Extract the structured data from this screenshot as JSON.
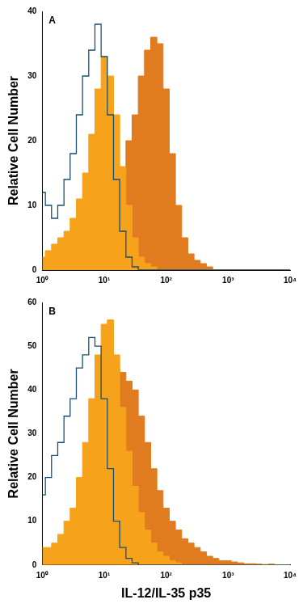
{
  "chart_data": [
    {
      "type": "line",
      "title": "A",
      "y_label": "Relative Cell Number",
      "x": [
        1,
        1.26,
        1.58,
        2,
        2.51,
        3.16,
        3.98,
        5.01,
        6.31,
        7.94,
        10,
        12.6,
        15.8,
        20,
        25.1,
        31.6,
        39.8,
        50.1,
        63.1,
        79.4,
        100,
        126,
        158,
        200,
        251,
        316,
        398,
        501,
        631,
        794,
        1000,
        1260,
        1580,
        2000,
        2510,
        3160,
        3980,
        5010,
        6310,
        7940,
        10000
      ],
      "series": [
        {
          "type": "line",
          "color": "#1b4f72",
          "values": [
            12,
            10,
            8,
            10,
            14,
            18,
            24,
            30,
            34,
            38,
            33,
            24,
            14,
            6,
            2,
            0.5,
            0,
            0,
            0,
            0,
            0,
            0,
            0,
            0,
            0,
            0,
            0,
            0,
            0,
            0,
            0,
            0,
            0,
            0,
            0,
            0,
            0,
            0,
            0,
            0,
            0
          ]
        },
        {
          "type": "area",
          "color": "#f7a21b",
          "values": [
            2,
            3,
            4,
            5,
            6,
            8,
            11,
            15,
            21,
            28,
            33,
            30,
            24,
            16,
            10,
            5,
            2,
            1,
            0.5,
            0,
            0,
            0,
            0,
            0,
            0,
            0,
            0,
            0,
            0,
            0,
            0,
            0,
            0,
            0,
            0,
            0,
            0,
            0,
            0,
            0,
            0
          ]
        },
        {
          "type": "area",
          "color": "#e07b1f",
          "values": [
            0,
            0,
            0,
            0,
            0,
            0,
            0,
            0,
            1,
            2,
            4,
            6,
            10,
            15,
            20,
            24,
            30,
            34,
            36,
            35,
            28,
            18,
            10,
            5,
            2.5,
            1.5,
            1,
            0.5,
            0,
            0,
            0,
            0,
            0,
            0,
            0,
            0,
            0,
            0,
            0,
            0,
            0
          ]
        }
      ],
      "log": "x",
      "grid": false,
      "xlim": [
        1,
        10000
      ],
      "xticks": [
        {
          "value": 1,
          "label": "10⁰"
        },
        {
          "value": 10,
          "label": "10¹"
        },
        {
          "value": 100,
          "label": "10²"
        },
        {
          "value": 1000,
          "label": "10³"
        },
        {
          "value": 10000,
          "label": "10⁴"
        }
      ],
      "ylim": [
        0,
        40
      ],
      "yticks": [
        0,
        10,
        20,
        30,
        40
      ]
    },
    {
      "type": "line",
      "title": "B",
      "y_label": "Relative Cell Number",
      "x_label": "IL-12/IL-35 p35",
      "x": [
        1,
        1.26,
        1.58,
        2,
        2.51,
        3.16,
        3.98,
        5.01,
        6.31,
        7.94,
        10,
        12.6,
        15.8,
        20,
        25.1,
        31.6,
        39.8,
        50.1,
        63.1,
        79.4,
        100,
        126,
        158,
        200,
        251,
        316,
        398,
        501,
        631,
        794,
        1000,
        1260,
        1580,
        2000,
        2510,
        3160,
        3980,
        5010,
        6310,
        7940,
        10000
      ],
      "series": [
        {
          "type": "line",
          "color": "#1b4f72",
          "values": [
            16,
            20,
            25,
            28,
            34,
            38,
            45,
            48,
            52,
            50,
            38,
            22,
            10,
            4,
            1.5,
            0.5,
            0,
            0,
            0,
            0,
            0,
            0,
            0,
            0,
            0,
            0,
            0,
            0,
            0,
            0,
            0,
            0,
            0,
            0,
            0,
            0,
            0,
            0,
            0,
            0,
            0
          ]
        },
        {
          "type": "area",
          "color": "#f7a21b",
          "values": [
            4,
            4,
            5,
            7,
            10,
            13,
            20,
            28,
            38,
            48,
            55,
            56,
            48,
            36,
            26,
            18,
            12,
            8,
            5,
            3,
            2,
            1,
            0.5,
            0,
            0,
            0,
            0,
            0,
            0,
            0,
            0,
            0,
            0,
            0,
            0,
            0,
            0,
            0,
            0,
            0,
            0
          ]
        },
        {
          "type": "area",
          "color": "#e07b1f",
          "values": [
            0,
            0,
            1,
            2,
            4,
            7,
            10,
            14,
            20,
            30,
            38,
            42,
            45,
            44,
            42,
            40,
            34,
            28,
            22,
            17,
            13,
            10,
            8,
            6,
            5,
            4,
            3,
            2,
            1.5,
            1,
            1,
            0.7,
            0.5,
            0.3,
            0.3,
            0.2,
            0.1,
            0.2,
            0,
            0,
            0
          ]
        }
      ],
      "log": "x",
      "grid": false,
      "xlim": [
        1,
        10000
      ],
      "xticks": [
        {
          "value": 1,
          "label": "10⁰"
        },
        {
          "value": 10,
          "label": "10¹"
        },
        {
          "value": 100,
          "label": "10²"
        },
        {
          "value": 1000,
          "label": "10³"
        },
        {
          "value": 10000,
          "label": "10⁴"
        }
      ],
      "ylim": [
        0,
        60
      ],
      "yticks": [
        0,
        10,
        20,
        30,
        40,
        50,
        60
      ]
    }
  ]
}
